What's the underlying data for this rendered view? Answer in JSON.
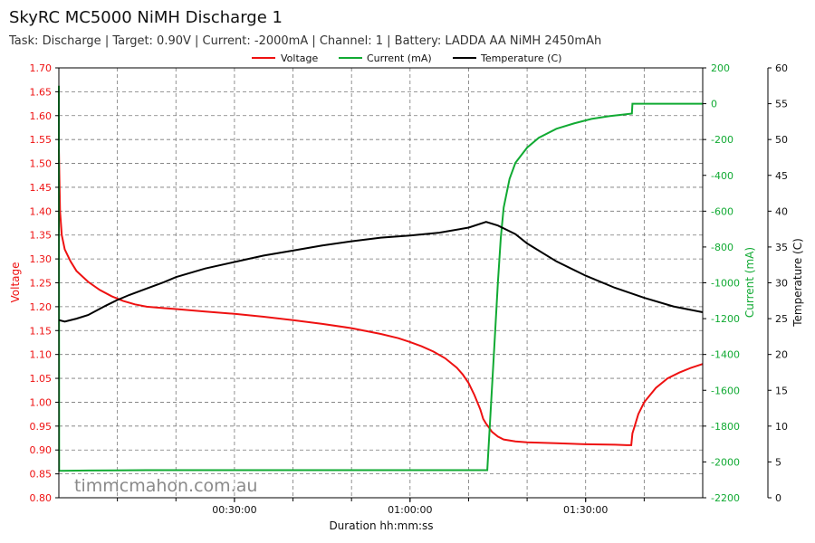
{
  "header": {
    "title": "SkyRC MC5000 NiMH Discharge 1",
    "subtitle": "Task: Discharge | Target: 0.90V | Current: -2000mA | Channel: 1 | Battery: LADDA AA NiMH 2450mAh"
  },
  "watermark": "timmcmahon.com.au",
  "colors": {
    "voltage": "#ee1111",
    "current": "#11aa33",
    "temperature": "#000000",
    "grid": "#777777"
  },
  "chart_data": {
    "type": "line",
    "xlabel": "Duration hh:mm:ss",
    "x_unit": "minutes",
    "xlim": [
      0,
      110
    ],
    "x_ticks": [
      {
        "value": 30,
        "label": "00:30:00"
      },
      {
        "value": 60,
        "label": "01:00:00"
      },
      {
        "value": 90,
        "label": "01:30:00"
      }
    ],
    "grid": true,
    "legend_placement": "top-center",
    "axes": {
      "voltage": {
        "label": "Voltage",
        "lim": [
          0.8,
          1.7
        ],
        "ticks": [
          "0.80",
          "0.85",
          "0.90",
          "0.95",
          "1.00",
          "1.05",
          "1.10",
          "1.15",
          "1.20",
          "1.25",
          "1.30",
          "1.35",
          "1.40",
          "1.45",
          "1.50",
          "1.55",
          "1.60",
          "1.65",
          "1.70"
        ]
      },
      "current": {
        "label": "Current (mA)",
        "lim": [
          -2200,
          200
        ],
        "ticks": [
          "-2200",
          "-2000",
          "-1800",
          "-1600",
          "-1400",
          "-1200",
          "-1000",
          "-800",
          "-600",
          "-400",
          "-200",
          "0",
          "200"
        ]
      },
      "temperature": {
        "label": "Temperature (C)",
        "lim": [
          0,
          60
        ],
        "ticks": [
          "0",
          "5",
          "10",
          "15",
          "20",
          "25",
          "30",
          "35",
          "40",
          "45",
          "50",
          "55",
          "60"
        ]
      }
    },
    "series": [
      {
        "name": "Voltage",
        "axis": "voltage",
        "x": [
          0,
          0.2,
          0.5,
          1,
          2,
          3,
          5,
          7,
          9,
          11,
          13,
          15,
          18,
          20,
          25,
          30,
          35,
          40,
          45,
          50,
          55,
          58,
          60,
          62,
          64,
          66,
          68,
          69,
          70,
          71,
          72,
          72.5,
          73,
          73.3,
          74,
          75,
          76,
          78,
          80,
          85,
          90,
          95,
          97,
          97.8,
          98,
          98.5,
          99,
          100,
          102,
          104,
          106,
          108,
          110
        ],
        "y": [
          1.53,
          1.4,
          1.35,
          1.32,
          1.295,
          1.275,
          1.252,
          1.235,
          1.222,
          1.212,
          1.205,
          1.2,
          1.197,
          1.195,
          1.19,
          1.185,
          1.179,
          1.172,
          1.164,
          1.155,
          1.143,
          1.134,
          1.126,
          1.117,
          1.106,
          1.092,
          1.072,
          1.058,
          1.04,
          1.015,
          0.985,
          0.965,
          0.955,
          0.95,
          0.938,
          0.928,
          0.922,
          0.918,
          0.916,
          0.914,
          0.912,
          0.911,
          0.91,
          0.91,
          0.935,
          0.955,
          0.975,
          1.0,
          1.03,
          1.05,
          1.062,
          1.072,
          1.08
        ]
      },
      {
        "name": "Current (mA)",
        "axis": "current",
        "x": [
          0,
          0.05,
          0.3,
          5,
          15,
          30,
          50,
          60,
          70,
          73.2,
          73.8,
          74.5,
          75,
          75.5,
          76,
          77,
          78,
          80,
          82,
          85,
          88,
          91,
          94,
          97.9,
          98,
          110
        ],
        "y": [
          100,
          -2050,
          -2050,
          -2048,
          -2046,
          -2046,
          -2046,
          -2046,
          -2046,
          -2046,
          -1700,
          -1300,
          -1000,
          -750,
          -580,
          -420,
          -330,
          -245,
          -190,
          -140,
          -110,
          -85,
          -70,
          -55,
          0,
          0
        ]
      },
      {
        "name": "Temperature (C)",
        "axis": "temperature",
        "x": [
          0,
          1,
          3,
          5,
          8,
          10,
          12,
          15,
          18,
          20,
          25,
          30,
          35,
          40,
          45,
          50,
          55,
          60,
          65,
          70,
          73,
          75,
          78,
          80,
          85,
          90,
          95,
          100,
          105,
          110
        ],
        "y": [
          24.8,
          24.6,
          25.0,
          25.5,
          26.8,
          27.6,
          28.3,
          29.2,
          30.1,
          30.8,
          32.0,
          32.9,
          33.8,
          34.5,
          35.2,
          35.8,
          36.3,
          36.6,
          37.0,
          37.7,
          38.5,
          38.0,
          36.8,
          35.5,
          33.0,
          31.0,
          29.3,
          27.9,
          26.7,
          25.9
        ]
      }
    ]
  }
}
